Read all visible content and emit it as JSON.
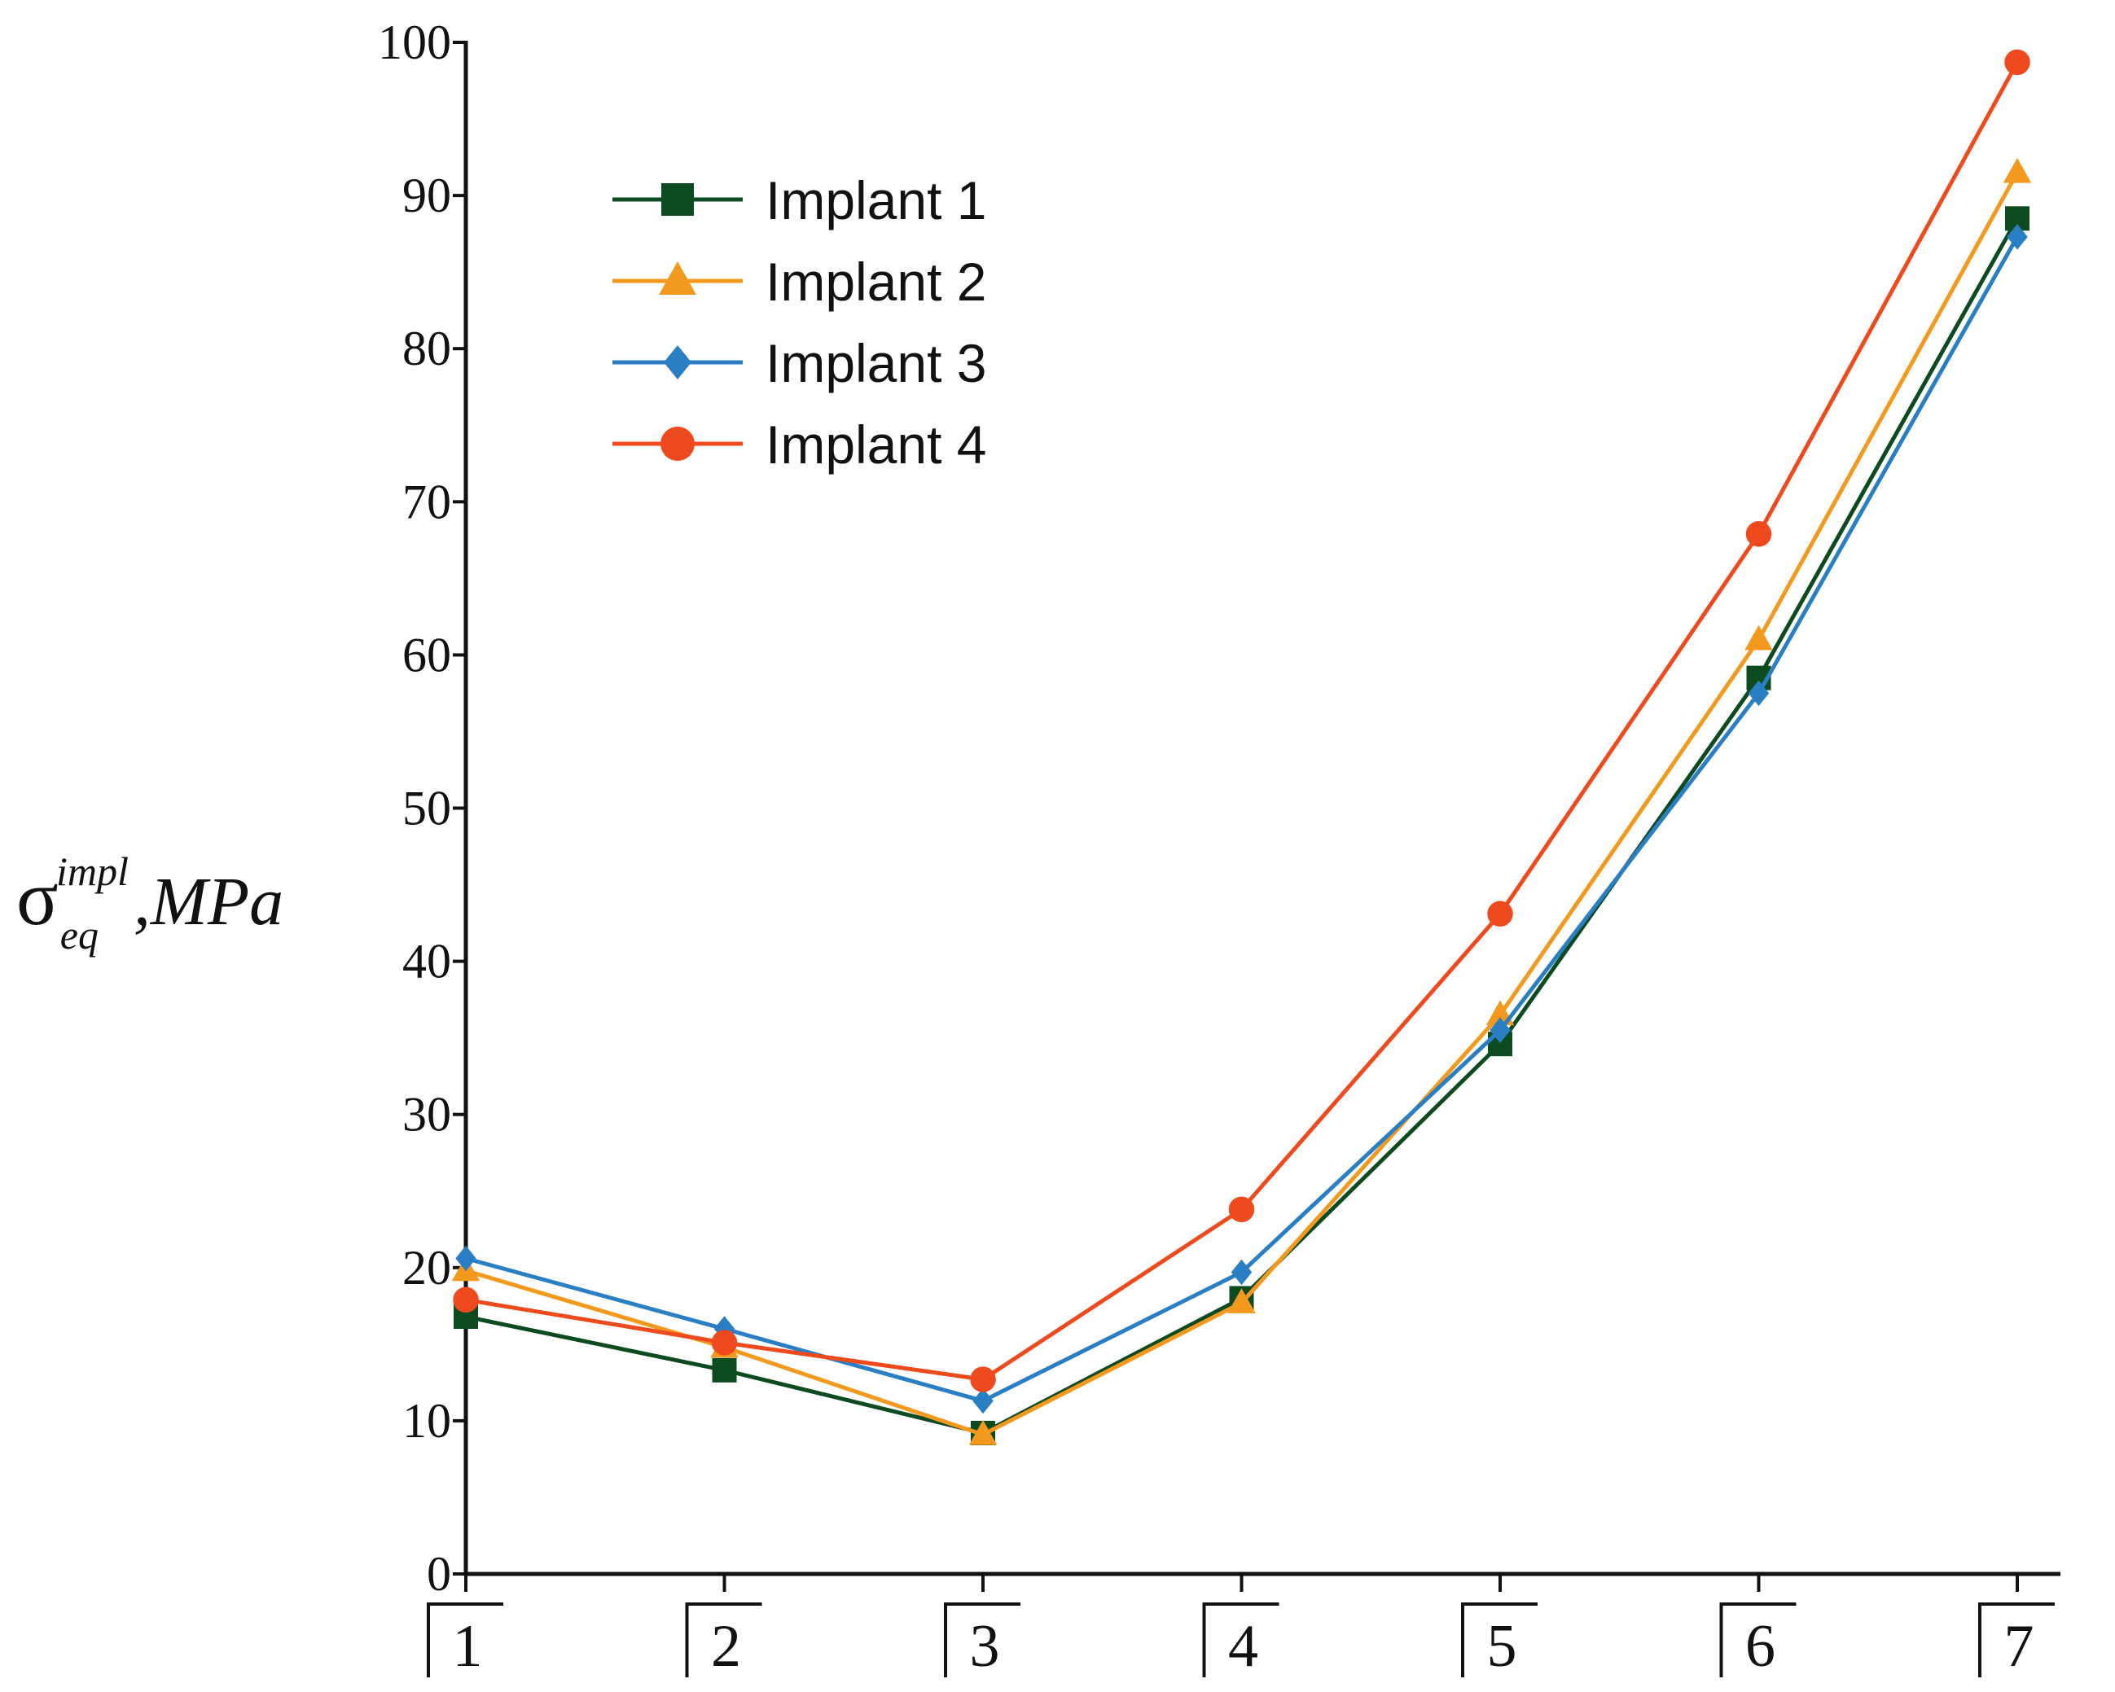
{
  "chart_data": {
    "type": "line",
    "title": "",
    "xlabel": "",
    "ylabel": {
      "symbol": "σ",
      "subscript": "eq",
      "superscript": "impl",
      "unit_text": ",MPa"
    },
    "categories": [
      "1",
      "2",
      "3",
      "4",
      "5",
      "6",
      "7"
    ],
    "ylim": [
      0,
      100
    ],
    "yticks": [
      0,
      10,
      20,
      30,
      40,
      50,
      60,
      70,
      80,
      90,
      100
    ],
    "grid": false,
    "legend_position": "top-left",
    "series": [
      {
        "name": "Implant 1",
        "color": "#0d4a1f",
        "marker": "square",
        "values": [
          16.8,
          13.3,
          9.2,
          18.0,
          34.6,
          58.5,
          88.5
        ]
      },
      {
        "name": "Implant 2",
        "color": "#f39a1e",
        "marker": "triangle",
        "values": [
          19.8,
          14.8,
          9.1,
          17.7,
          36.5,
          61.0,
          91.5
        ]
      },
      {
        "name": "Implant 3",
        "color": "#2a7fc4",
        "marker": "diamond",
        "values": [
          20.6,
          16.0,
          11.3,
          19.7,
          35.5,
          57.5,
          87.3
        ]
      },
      {
        "name": "Implant 4",
        "color": "#ee4a1e",
        "marker": "circle",
        "values": [
          17.9,
          15.1,
          12.7,
          23.8,
          43.1,
          67.9,
          98.7
        ]
      }
    ]
  }
}
